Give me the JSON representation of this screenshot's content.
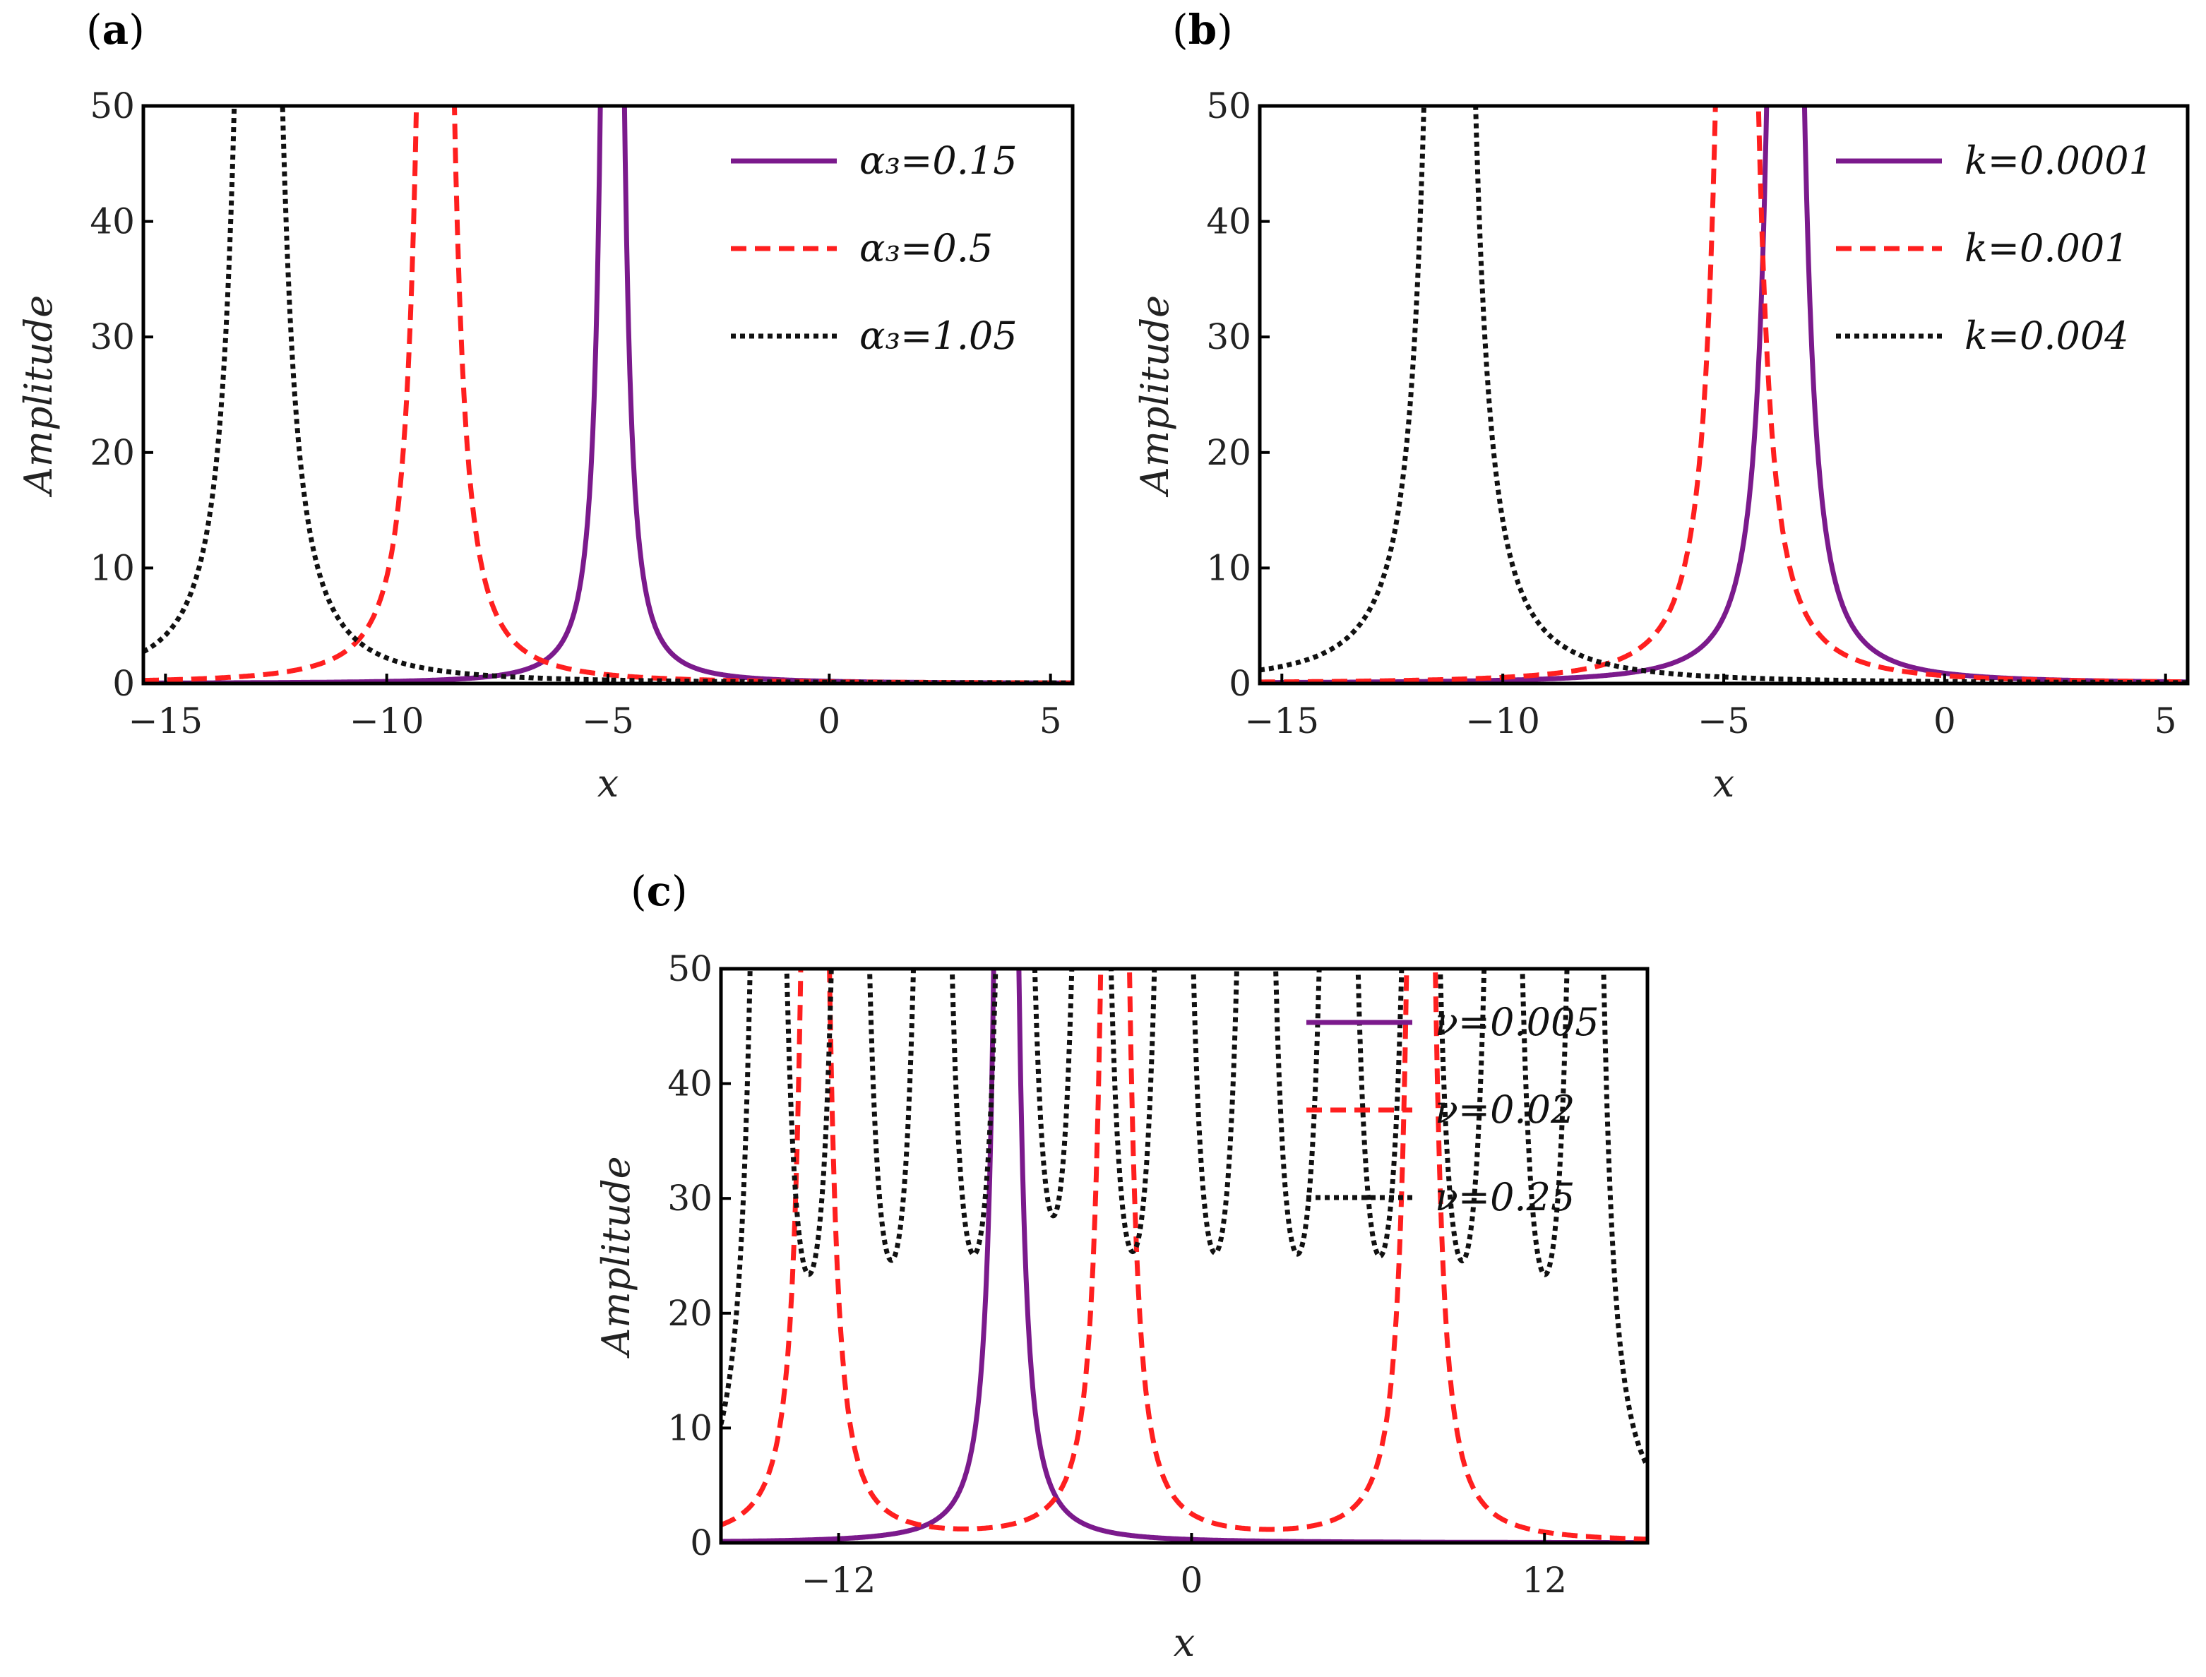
{
  "chart_data": [
    {
      "panel": "a",
      "type": "line",
      "xlabel": "x",
      "ylabel": "Amplitude",
      "xlim": [
        -15.5,
        5.5
      ],
      "ylim": [
        0,
        50
      ],
      "xticks": [
        -15,
        -10,
        -5,
        0,
        5
      ],
      "xtick_labels": [
        "−15",
        "−10",
        "−5",
        "0",
        "5"
      ],
      "yticks": [
        0,
        10,
        20,
        30,
        40,
        50
      ],
      "ytick_labels": [
        "0",
        "10",
        "20",
        "30",
        "40",
        "50"
      ],
      "legend_position": "top-right",
      "series": [
        {
          "name": "α₃=0.15",
          "color": "#7b1a8c",
          "style": "solid",
          "peaks": [
            -4.9
          ],
          "width": 0.14
        },
        {
          "name": "α₃=0.5",
          "color": "#ff1f1f",
          "style": "dashed",
          "peaks": [
            -8.9
          ],
          "width": 0.22
        },
        {
          "name": "α₃=1.05",
          "color": "#111111",
          "style": "dotted",
          "peaks": [
            -12.9
          ],
          "width": 0.28
        }
      ]
    },
    {
      "panel": "b",
      "type": "line",
      "xlabel": "x",
      "ylabel": "Amplitude",
      "xlim": [
        -15.5,
        5.5
      ],
      "ylim": [
        0,
        50
      ],
      "xticks": [
        -15,
        -10,
        -5,
        0,
        5
      ],
      "xtick_labels": [
        "−15",
        "−10",
        "−5",
        "0",
        "5"
      ],
      "yticks": [
        0,
        10,
        20,
        30,
        40,
        50
      ],
      "ytick_labels": [
        "0",
        "10",
        "20",
        "30",
        "40",
        "50"
      ],
      "legend_position": "top-right",
      "series": [
        {
          "name": "k=0.0001",
          "color": "#7b1a8c",
          "style": "solid",
          "peaks": [
            -3.6
          ],
          "width": 0.22
        },
        {
          "name": "k=0.001",
          "color": "#ff1f1f",
          "style": "dashed",
          "peaks": [
            -4.7
          ],
          "width": 0.25
        },
        {
          "name": "k=0.004",
          "color": "#111111",
          "style": "dotted",
          "peaks": [
            -11.2
          ],
          "width": 0.3
        }
      ]
    },
    {
      "panel": "c",
      "type": "line",
      "xlabel": "x",
      "ylabel": "Amplitude",
      "xlim": [
        -16,
        15.5
      ],
      "ylim": [
        0,
        50
      ],
      "xticks": [
        -12,
        0,
        12
      ],
      "xtick_labels": [
        "−12",
        "0",
        "12"
      ],
      "yticks": [
        0,
        10,
        20,
        30,
        40,
        50
      ],
      "ytick_labels": [
        "0",
        "10",
        "20",
        "30",
        "40",
        "50"
      ],
      "legend_position": "top-right",
      "series": [
        {
          "name": "ν=0.005",
          "color": "#7b1a8c",
          "style": "solid",
          "peaks": [
            -6.3
          ],
          "width": 0.22
        },
        {
          "name": "ν=0.02",
          "color": "#ff1f1f",
          "style": "dashed",
          "peaks": [
            -12.8,
            -2.6,
            7.8
          ],
          "width": 0.25
        },
        {
          "name": "ν=0.25",
          "color": "#111111",
          "style": "dotted",
          "peaks": [
            -14.4,
            -11.6,
            -8.8,
            -6.0,
            -3.4,
            -0.6,
            2.2,
            5.0,
            7.8,
            10.6,
            13.4
          ],
          "width": 0.3
        }
      ]
    }
  ],
  "panel_labels": [
    "(a)",
    "(b)",
    "(c)"
  ]
}
